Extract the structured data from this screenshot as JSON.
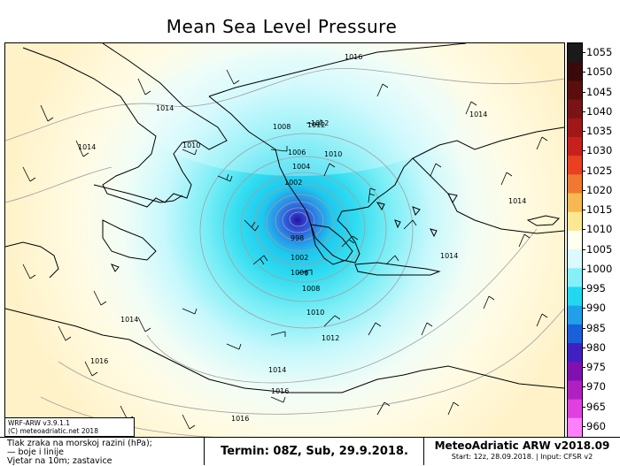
{
  "title": "Mean Sea Level Pressure",
  "colorbar": {
    "labels": [
      "1055",
      "1050",
      "1045",
      "1040",
      "1035",
      "1030",
      "1025",
      "1020",
      "1015",
      "1010",
      "1005",
      "1000",
      "995",
      "990",
      "985",
      "980",
      "975",
      "970",
      "965",
      "960"
    ],
    "colors": [
      "#1a1a1a",
      "#3a0a0a",
      "#5c0e0e",
      "#7a1414",
      "#a01818",
      "#c8201c",
      "#e84020",
      "#f07830",
      "#f6b850",
      "#fbe890",
      "#fffff0",
      "#dafaff",
      "#86f0f8",
      "#20d8f0",
      "#20a0e8",
      "#1a60d8",
      "#4020c0",
      "#8010b0",
      "#b020c0",
      "#e040e0",
      "#ff80ff"
    ]
  },
  "contour_labels": [
    "1016",
    "1014",
    "1012",
    "1014",
    "1014",
    "1010",
    "1008",
    "1012",
    "1010",
    "1006",
    "1004",
    "1002",
    "998",
    "1002",
    "1006",
    "1008",
    "1010",
    "1012",
    "1014",
    "1014",
    "1014",
    "1016",
    "1014",
    "1016",
    "1016"
  ],
  "info_box": {
    "line1": "WRF-ARW v3.9.1.1",
    "line2": "(C) meteoadriatic.net 2018"
  },
  "legend": {
    "line1": "Tlak zraka na morskoj razini (hPa);",
    "line2": "— boje i linije",
    "line3": "Vjetar na 10m; zastavice"
  },
  "termin": "Termin: 08Z, Sub, 29.9.2018.",
  "model": {
    "name": "MeteoAdriatic ARW v2018.09",
    "start": "Start: 12z, 28.09.2018. | Input: CFSR v2"
  }
}
